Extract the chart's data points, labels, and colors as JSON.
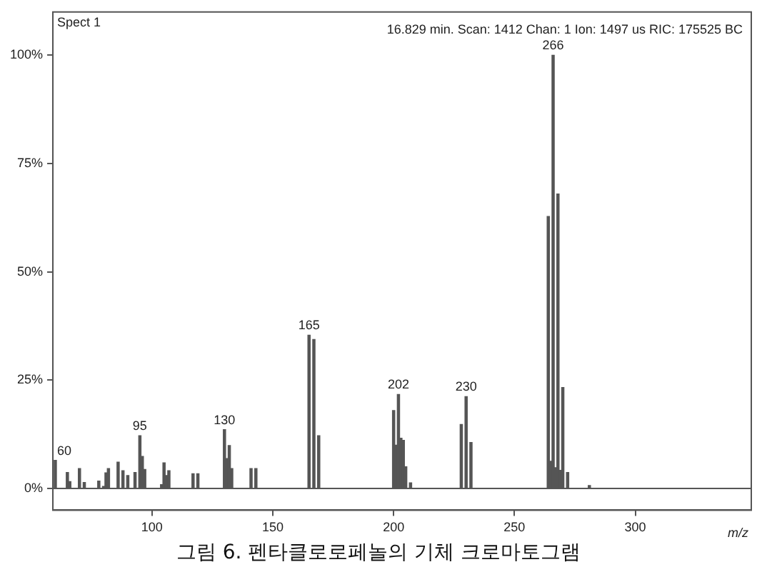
{
  "chart_data": {
    "type": "bar",
    "title": "그림 6. 펜타클로로페놀의 기체 크로마토그램",
    "xlabel": "m/z",
    "annotations": [
      "Spect 1",
      "16.829 min. Scan: 1412 Chan: 1 Ion: 1497 us RIC: 175525 BC",
      {
        "text": "60",
        "x": 60,
        "y": 6.5
      },
      {
        "text": "95",
        "x": 95,
        "y": 12.2
      },
      {
        "text": "130",
        "x": 130,
        "y": 13.6
      },
      {
        "text": "165",
        "x": 165,
        "y": 35.4
      },
      {
        "text": "202",
        "x": 202,
        "y": 21.7
      },
      {
        "text": "230",
        "x": 230,
        "y": 21.2
      },
      {
        "text": "266",
        "x": 266,
        "y": 100
      }
    ],
    "x": [
      60,
      65,
      66,
      70,
      72,
      78,
      80,
      81,
      82,
      86,
      88,
      90,
      93,
      95,
      96,
      97,
      104,
      105,
      106,
      107,
      117,
      119,
      130,
      131,
      132,
      133,
      141,
      143,
      165,
      167,
      169,
      200,
      201,
      202,
      203,
      204,
      205,
      207,
      228,
      230,
      232,
      264,
      265,
      266,
      267,
      268,
      269,
      270,
      272,
      281
    ],
    "values": [
      6.5,
      3.7,
      1.6,
      4.6,
      1.4,
      1.7,
      0.5,
      3.6,
      4.6,
      6.1,
      4.1,
      3.0,
      3.7,
      12.2,
      7.4,
      4.4,
      0.9,
      5.9,
      3.0,
      4.1,
      3.4,
      3.4,
      13.6,
      6.9,
      9.9,
      4.6,
      4.6,
      4.6,
      35.4,
      34.4,
      12.2,
      18.0,
      10,
      21.7,
      11.6,
      11.1,
      5,
      1.3,
      14.8,
      21.2,
      10.6,
      62.8,
      6.3,
      100,
      4.8,
      68,
      4.2,
      23.3,
      3.7,
      0.7
    ],
    "color": "#555555",
    "xlim": [
      59,
      348
    ],
    "xticks": [
      100,
      150,
      200,
      250,
      300
    ],
    "ylim": [
      -5,
      110
    ],
    "yticks": [
      {
        "value": 0,
        "label": "0%"
      },
      {
        "value": 25,
        "label": "25%"
      },
      {
        "value": 50,
        "label": "50%"
      },
      {
        "value": 75,
        "label": "75%"
      },
      {
        "value": 100,
        "label": "100%"
      }
    ],
    "ref_lines": [
      {
        "axis": "y",
        "value": 0,
        "color": "#555555"
      }
    ],
    "legend": false
  }
}
